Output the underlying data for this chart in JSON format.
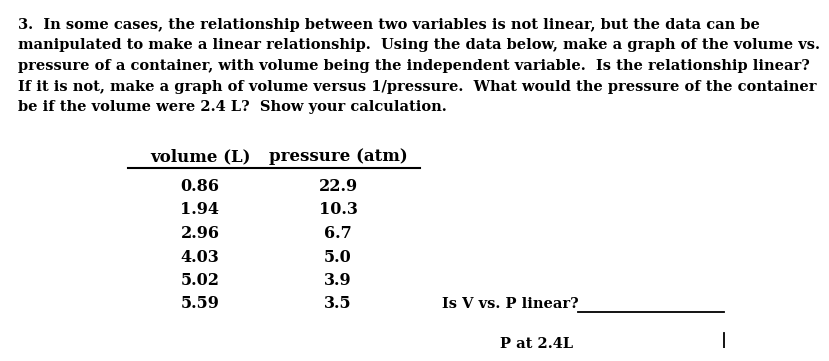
{
  "background_color": "#ffffff",
  "paragraph_lines": [
    "3.  In some cases, the relationship between two variables is not linear, but the data can be",
    "manipulated to make a linear relationship.  Using the data below, make a graph of the volume vs.",
    "pressure of a container, with volume being the independent variable.  Is the relationship linear?",
    "If it is not, make a graph of volume versus 1/pressure.  What would the pressure of the container",
    "be if the volume were 2.4 L?  Show your calculation."
  ],
  "col1_header": "volume (L)",
  "col2_header": "pressure (atm)",
  "col1_data": [
    "0.86",
    "1.94",
    "2.96",
    "4.03",
    "5.02",
    "5.59"
  ],
  "col2_data": [
    "22.9",
    "10.3",
    "6.7",
    "5.0",
    "3.9",
    "3.5"
  ],
  "label1": "Is V vs. P linear?",
  "label2": "P at 2.4L",
  "text_color": "#000000",
  "font_size_body": 10.5,
  "font_size_table_header": 12,
  "font_size_table_data": 11.5,
  "font_family": "serif"
}
